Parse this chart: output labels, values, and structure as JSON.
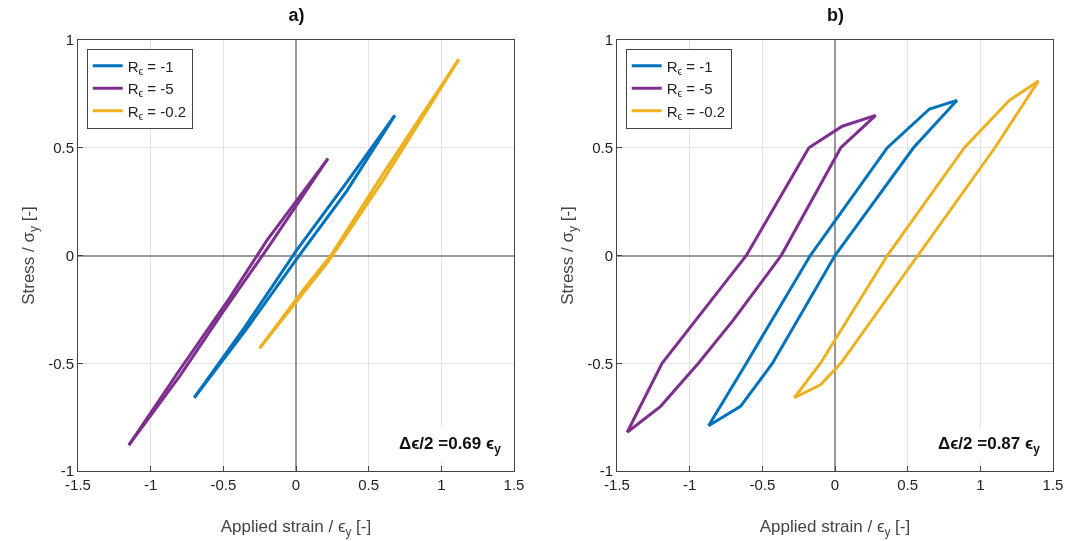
{
  "chart_data": [
    {
      "type": "line",
      "title": "a)",
      "xlabel": "Applied strain / ϵ$_{y}$ [-]",
      "ylabel": "Stress / σ$_{y}$ [-]",
      "xlim": [
        -1.5,
        1.5
      ],
      "xticks": [
        -1.5,
        -1,
        -0.5,
        0,
        0.5,
        1,
        1.5
      ],
      "ylim": [
        -1,
        1
      ],
      "yticks": [
        -1,
        -0.5,
        0,
        0.5,
        1
      ],
      "grid": true,
      "legend": "top left",
      "marker": "none",
      "line_style": "solid",
      "annotations": [
        "Δϵ/2 =0.69 ϵ$_{y}$"
      ],
      "series": [
        {
          "name": "R$_{ϵ}$ = -1",
          "color": "#0072bd",
          "x": [
            -0.7,
            -0.35,
            0,
            0.35,
            0.68
          ],
          "values": [
            -0.66,
            -0.33,
            0.02,
            0.34,
            0.65
          ]
        },
        {
          "color": "#0072bd",
          "x": [
            -0.7,
            -0.35,
            0,
            0.35,
            0.68
          ],
          "values": [
            -0.66,
            -0.35,
            -0.02,
            0.3,
            0.65
          ]
        },
        {
          "name": "R$_{ϵ}$ = -5",
          "color": "#7e2f8e",
          "x": [
            -1.15,
            -0.8,
            -0.46,
            -0.2,
            0.22
          ],
          "values": [
            -0.88,
            -0.53,
            -0.2,
            0.07,
            0.45
          ]
        },
        {
          "color": "#7e2f8e",
          "x": [
            -1.15,
            -0.8,
            -0.5,
            -0.2,
            0.22
          ],
          "values": [
            -0.88,
            -0.56,
            -0.26,
            0.03,
            0.45
          ]
        },
        {
          "name": "R$_{ϵ}$ = -0.2",
          "color": "#edb120",
          "x": [
            -0.25,
            0.05,
            0.24,
            0.6,
            1.12
          ],
          "values": [
            -0.43,
            -0.16,
            0,
            0.38,
            0.91
          ]
        },
        {
          "color": "#edb120",
          "x": [
            -0.25,
            0.22,
            0.6,
            1.12
          ],
          "values": [
            -0.43,
            -0.03,
            0.35,
            0.91
          ]
        }
      ]
    },
    {
      "type": "line",
      "title": "b)",
      "xlabel": "Applied strain / ϵ$_{y}$ [-]",
      "ylabel": "Stress / σ$_{y}$ [-]",
      "xlim": [
        -1.5,
        1.5
      ],
      "xticks": [
        -1.5,
        -1,
        -0.5,
        0,
        0.5,
        1,
        1.5
      ],
      "ylim": [
        -1,
        1
      ],
      "yticks": [
        -1,
        -0.5,
        0,
        0.5,
        1
      ],
      "grid": true,
      "legend": "top left",
      "marker": "none",
      "line_style": "solid",
      "annotations": [
        "Δϵ/2 =0.87 ϵ$_{y}$"
      ],
      "series": [
        {
          "name": "R$_{ϵ}$ = -1",
          "color": "#0072bd",
          "x": [
            -0.87,
            -0.61,
            -0.17,
            0.36,
            0.65,
            0.84
          ],
          "values": [
            -0.79,
            -0.5,
            0,
            0.5,
            0.68,
            0.72
          ]
        },
        {
          "color": "#0072bd",
          "x": [
            -0.87,
            -0.65,
            -0.43,
            0,
            0.54,
            0.84
          ],
          "values": [
            -0.79,
            -0.7,
            -0.5,
            0,
            0.5,
            0.72
          ]
        },
        {
          "name": "R$_{ϵ}$ = -5",
          "color": "#7e2f8e",
          "x": [
            -1.43,
            -1.19,
            -0.9,
            -0.61,
            -0.18,
            0.05,
            0.28
          ],
          "values": [
            -0.82,
            -0.5,
            -0.25,
            0,
            0.5,
            0.6,
            0.65
          ]
        },
        {
          "color": "#7e2f8e",
          "x": [
            -1.43,
            -1.2,
            -0.94,
            -0.7,
            -0.37,
            0.04,
            0.28
          ],
          "values": [
            -0.82,
            -0.7,
            -0.5,
            -0.3,
            0,
            0.5,
            0.65
          ]
        },
        {
          "name": "R$_{ϵ}$ = -0.2",
          "color": "#edb120",
          "x": [
            -0.28,
            -0.1,
            0.36,
            0.89,
            1.2,
            1.4
          ],
          "values": [
            -0.66,
            -0.5,
            0,
            0.5,
            0.72,
            0.81
          ]
        },
        {
          "color": "#edb120",
          "x": [
            -0.28,
            -0.1,
            0.04,
            0.57,
            1.1,
            1.4
          ],
          "values": [
            -0.66,
            -0.6,
            -0.5,
            0,
            0.5,
            0.81
          ]
        }
      ]
    }
  ]
}
